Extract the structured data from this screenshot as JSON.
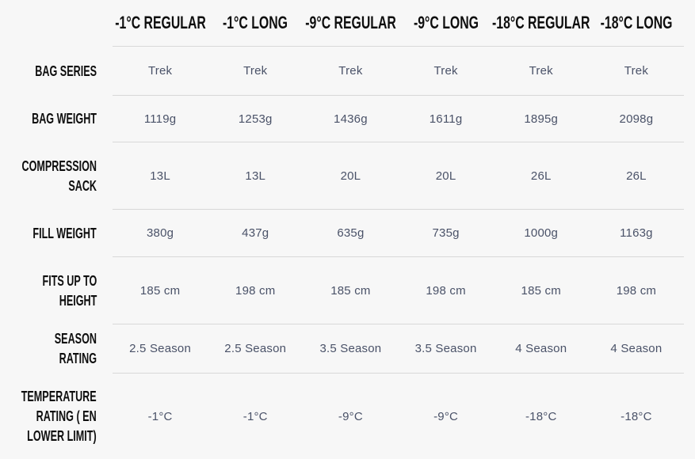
{
  "colors": {
    "background": "#f7f7f7",
    "header_text": "#0e0e0e",
    "label_text": "#0e0e0e",
    "value_text": "#4a5268",
    "divider": "#d8d8d8"
  },
  "chart_data": {
    "type": "table",
    "title": "",
    "legend_position": "none",
    "grid": "horizontal-dividers-only",
    "columns": [
      "-1°C REGULAR",
      "-1°C LONG",
      "-9°C REGULAR",
      "-9°C LONG",
      "-18°C REGULAR",
      "-18°C LONG"
    ],
    "rows": [
      {
        "label": "BAG SERIES",
        "label_lines": [
          "BAG SERIES"
        ],
        "values": [
          "Trek",
          "Trek",
          "Trek",
          "Trek",
          "Trek",
          "Trek"
        ]
      },
      {
        "label": "BAG WEIGHT",
        "label_lines": [
          "BAG WEIGHT"
        ],
        "values": [
          "1119g",
          "1253g",
          "1436g",
          "1611g",
          "1895g",
          "2098g"
        ]
      },
      {
        "label": "COMPRESSION SACK",
        "label_lines": [
          "COMPRESSION",
          "SACK"
        ],
        "values": [
          "13L",
          "13L",
          "20L",
          "20L",
          "26L",
          "26L"
        ]
      },
      {
        "label": "FILL WEIGHT",
        "label_lines": [
          "FILL WEIGHT"
        ],
        "values": [
          "380g",
          "437g",
          "635g",
          "735g",
          "1000g",
          "1163g"
        ]
      },
      {
        "label": "FITS UP TO HEIGHT",
        "label_lines": [
          "FITS UP TO",
          "HEIGHT"
        ],
        "values": [
          "185 cm",
          "198 cm",
          "185 cm",
          "198 cm",
          "185 cm",
          "198 cm"
        ]
      },
      {
        "label": "SEASON RATING",
        "label_lines": [
          "SEASON RATING"
        ],
        "values": [
          "2.5 Season",
          "2.5 Season",
          "3.5 Season",
          "3.5 Season",
          "4 Season",
          "4 Season"
        ]
      },
      {
        "label": "TEMPERATURE RATING ( EN LOWER LIMIT)",
        "label_lines": [
          "TEMPERATURE",
          "RATING ( EN",
          "LOWER LIMIT)"
        ],
        "values": [
          "-1°C",
          "-1°C",
          "-9°C",
          "-9°C",
          "-18°C",
          "-18°C"
        ]
      }
    ]
  }
}
